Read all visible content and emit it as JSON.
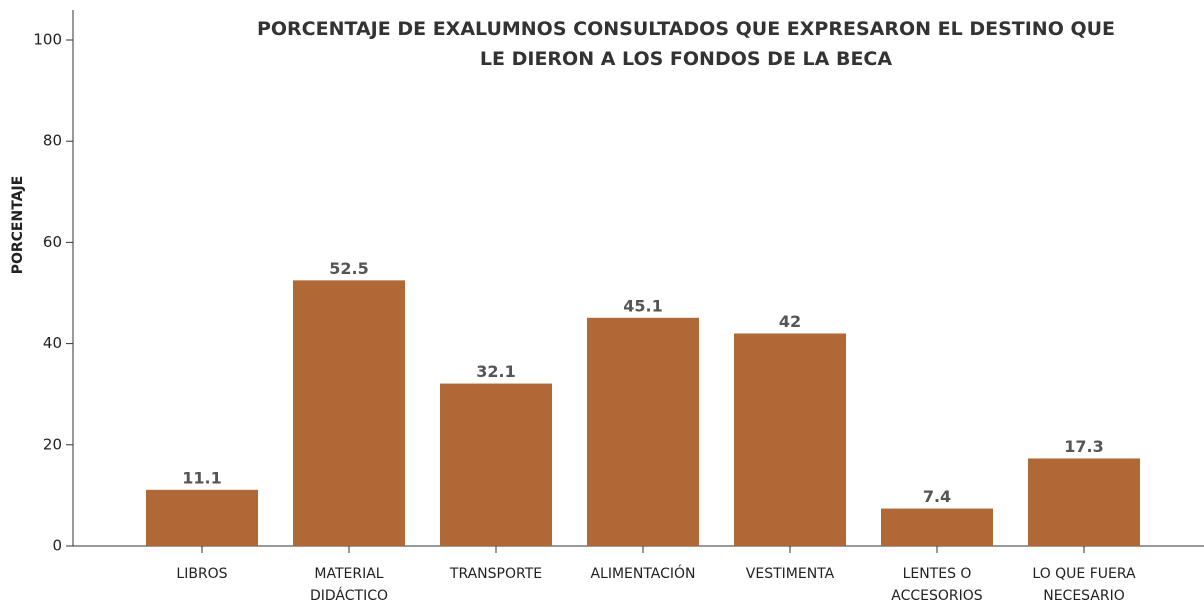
{
  "chart_data": {
    "type": "bar",
    "title": "PORCENTAJE DE EXALUMNOS CONSULTADOS QUE EXPRESARON EL DESTINO QUE LE DIERON A LOS FONDOS DE LA BECA",
    "y_label": "PORCENTAJE",
    "categories": [
      "LIBROS",
      "MATERIAL DIDÁCTICO",
      "TRANSPORTE",
      "ALIMENTACIÓN",
      "VESTIMENTA",
      "LENTES O ACCESORIOS",
      "LO QUE FUERA NECESARIO"
    ],
    "values": [
      11.1,
      52.5,
      32.1,
      45.1,
      42,
      7.4,
      17.3
    ],
    "color": "#b06837",
    "ylim": [
      0,
      100
    ],
    "yticks": [
      0,
      20,
      40,
      60,
      80,
      100
    ],
    "grid": false
  }
}
